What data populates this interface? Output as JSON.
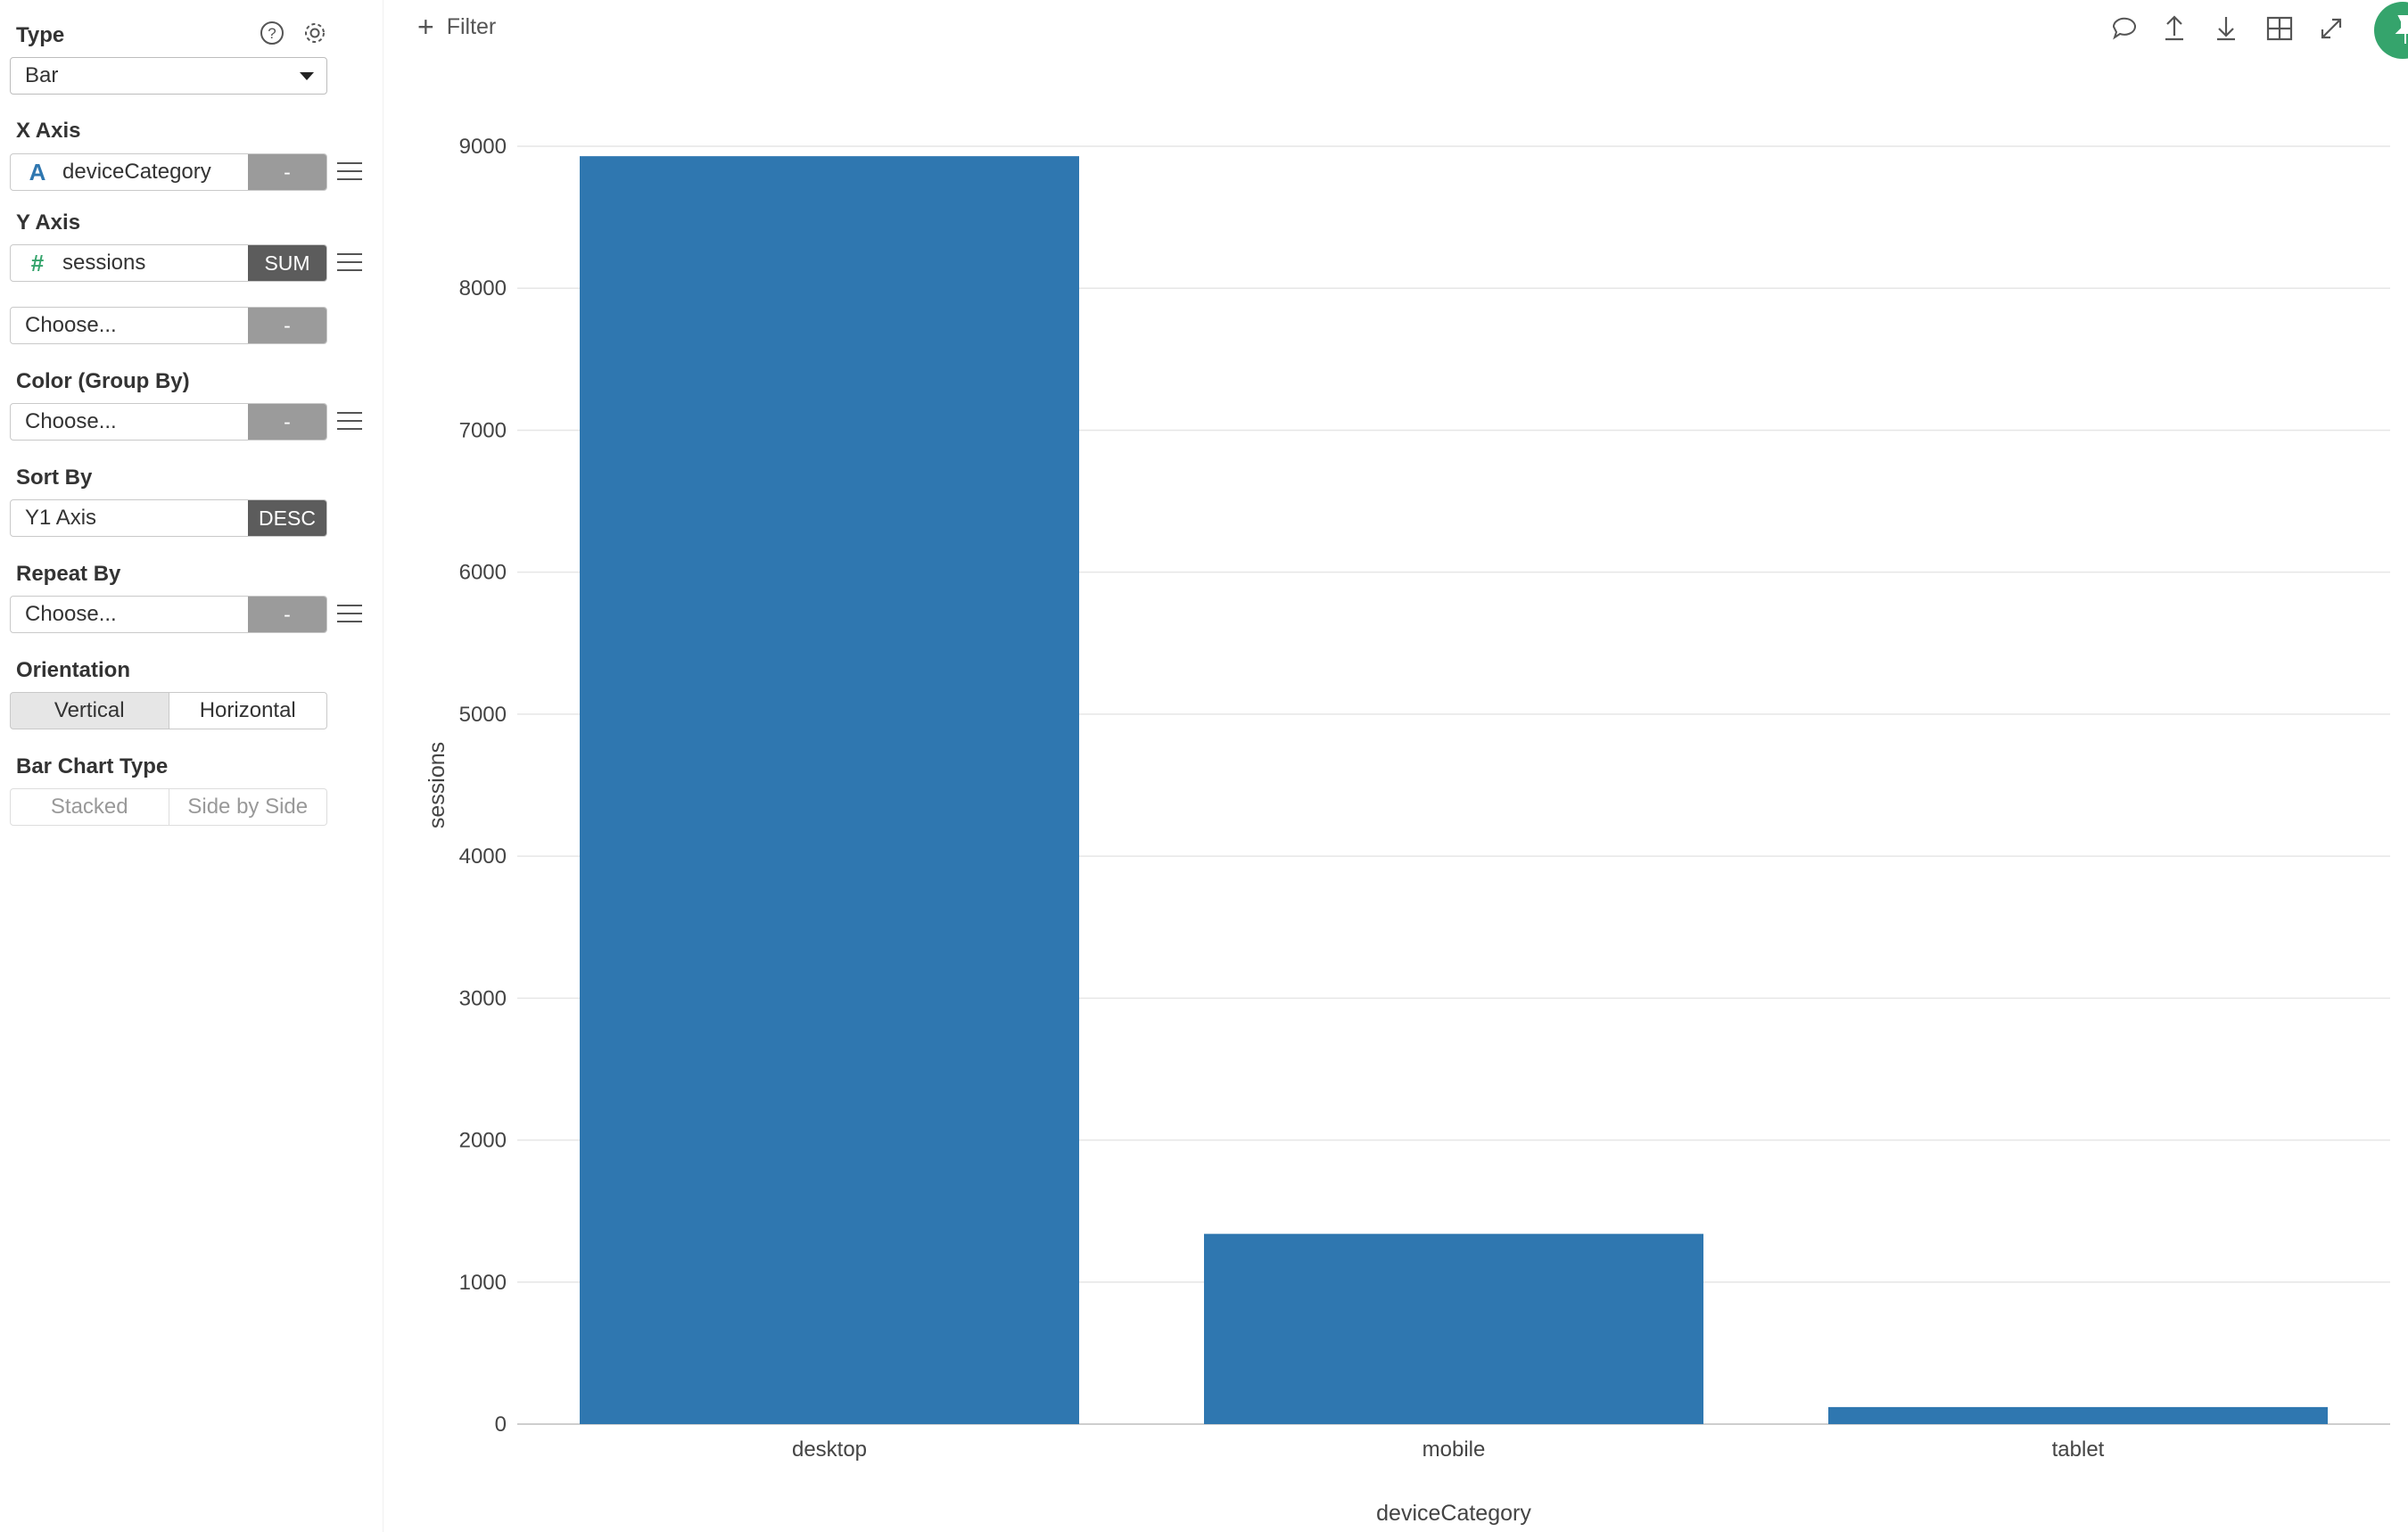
{
  "sidebar": {
    "type": {
      "label": "Type",
      "value": "Bar"
    },
    "x_axis": {
      "label": "X Axis",
      "field": "deviceCategory",
      "field_icon": "A",
      "agg": "-"
    },
    "y_axis": {
      "label": "Y Axis",
      "field": "sessions",
      "field_icon": "#",
      "agg": "SUM",
      "extra_field": "Choose...",
      "extra_agg": "-"
    },
    "color": {
      "label": "Color (Group By)",
      "field": "Choose...",
      "agg": "-"
    },
    "sort": {
      "label": "Sort By",
      "field": "Y1 Axis",
      "agg": "DESC"
    },
    "repeat": {
      "label": "Repeat By",
      "field": "Choose...",
      "agg": "-"
    },
    "orientation": {
      "label": "Orientation",
      "options": [
        "Vertical",
        "Horizontal"
      ],
      "selected": "Vertical"
    },
    "bar_type": {
      "label": "Bar Chart Type",
      "options": [
        "Stacked",
        "Side by Side"
      ]
    }
  },
  "toolbar": {
    "filter_label": "Filter",
    "icons": [
      "comment-icon",
      "upload-icon",
      "download-icon",
      "table-icon",
      "expand-icon",
      "pin-icon"
    ]
  },
  "colors": {
    "bar": "#2f77b0",
    "accent": "#35a46c",
    "grid": "#e6e6e6"
  },
  "chart_data": {
    "type": "bar",
    "categories": [
      "desktop",
      "mobile",
      "tablet"
    ],
    "values": [
      8930,
      1340,
      120
    ],
    "xlabel": "deviceCategory",
    "ylabel": "sessions",
    "ylim": [
      0,
      9000
    ],
    "yticks": [
      0,
      1000,
      2000,
      3000,
      4000,
      5000,
      6000,
      7000,
      8000,
      9000
    ],
    "grid": true
  }
}
